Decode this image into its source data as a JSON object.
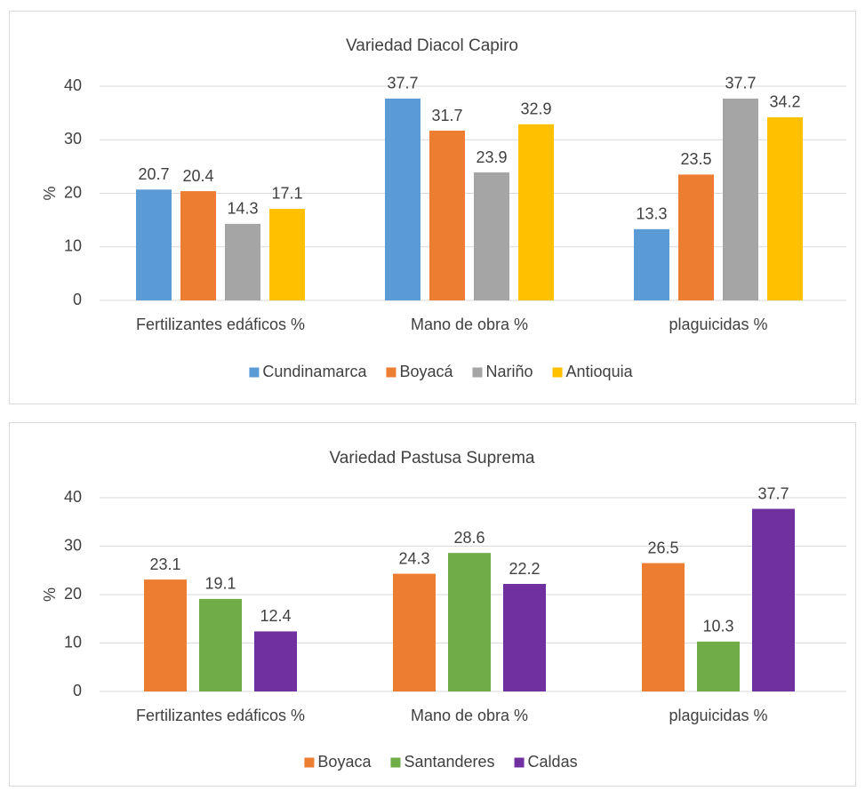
{
  "chart_data": [
    {
      "type": "bar",
      "title": "Variedad Diacol Capiro",
      "y_label": "%",
      "categories": [
        "Fertilizantes edáficos %",
        "Mano de obra %",
        "plaguicidas %"
      ],
      "series": [
        {
          "name": "Cundinamarca",
          "color": "#5b9bd5",
          "values": [
            20.7,
            37.7,
            13.3
          ]
        },
        {
          "name": "Boyacá",
          "color": "#ed7d31",
          "values": [
            20.4,
            31.7,
            23.5
          ]
        },
        {
          "name": "Nariño",
          "color": "#a5a5a5",
          "values": [
            14.3,
            23.9,
            37.7
          ]
        },
        {
          "name": "Antioquia",
          "color": "#ffc000",
          "values": [
            17.1,
            32.9,
            34.2
          ]
        }
      ],
      "ylim": [
        0,
        40
      ],
      "yticks": [
        0,
        10,
        20,
        30,
        40
      ],
      "grid": true,
      "legend": "bottom"
    },
    {
      "type": "bar",
      "title": "Variedad Pastusa Suprema",
      "y_label": "%",
      "categories": [
        "Fertilizantes edáficos %",
        "Mano de obra %",
        "plaguicidas %"
      ],
      "series": [
        {
          "name": "Boyaca",
          "color": "#ed7d31",
          "values": [
            23.1,
            24.3,
            26.5
          ]
        },
        {
          "name": "Santanderes",
          "color": "#70ad47",
          "values": [
            19.1,
            28.6,
            10.3
          ]
        },
        {
          "name": "Caldas",
          "color": "#7030a0",
          "values": [
            12.4,
            22.2,
            37.7
          ]
        }
      ],
      "ylim": [
        0,
        40
      ],
      "yticks": [
        0,
        10,
        20,
        30,
        40
      ],
      "grid": true,
      "legend": "bottom"
    }
  ]
}
